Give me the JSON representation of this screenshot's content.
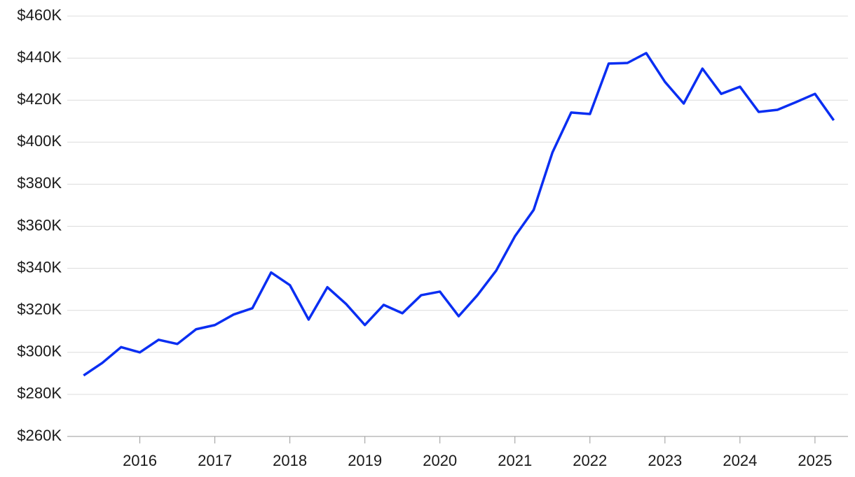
{
  "chart_data": {
    "type": "line",
    "x": [
      2015.25,
      2015.5,
      2015.75,
      2016,
      2016.25,
      2016.5,
      2016.75,
      2017,
      2017.25,
      2017.5,
      2017.75,
      2018,
      2018.25,
      2018.5,
      2018.75,
      2019,
      2019.25,
      2019.5,
      2019.75,
      2020,
      2020.25,
      2020.5,
      2020.75,
      2021,
      2021.25,
      2021.5,
      2021.75,
      2022,
      2022.25,
      2022.5,
      2022.75,
      2023,
      2023.25,
      2023.5,
      2023.75,
      2024,
      2024.25,
      2024.5,
      2024.75,
      2025,
      2025.25
    ],
    "series": [
      {
        "color": "#0a2ef2",
        "values": [
          289000,
          295000,
          302500,
          300000,
          306000,
          304000,
          311000,
          313000,
          318000,
          321000,
          338000,
          332000,
          315600,
          331000,
          323000,
          313000,
          322600,
          318600,
          327200,
          328900,
          317200,
          327200,
          338900,
          355200,
          367800,
          395100,
          414100,
          413400,
          437400,
          437700,
          442400,
          428700,
          418400,
          435000,
          423000,
          426400,
          414400,
          415400,
          419100,
          423000,
          410400
        ]
      }
    ],
    "xlim": [
      2015.07,
      2025.44
    ],
    "xticks": [
      2016,
      2017,
      2018,
      2019,
      2020,
      2021,
      2022,
      2023,
      2024,
      2025
    ],
    "ylim": [
      260000,
      460000
    ],
    "yticks": [
      {
        "value": 260000,
        "label": "$260K"
      },
      {
        "value": 280000,
        "label": "$280K"
      },
      {
        "value": 300000,
        "label": "$300K"
      },
      {
        "value": 320000,
        "label": "$320K"
      },
      {
        "value": 340000,
        "label": "$340K"
      },
      {
        "value": 360000,
        "label": "$360K"
      },
      {
        "value": 380000,
        "label": "$380K"
      },
      {
        "value": 400000,
        "label": "$400K"
      },
      {
        "value": 420000,
        "label": "$420K"
      },
      {
        "value": 440000,
        "label": "$440K"
      },
      {
        "value": 460000,
        "label": "$460K"
      }
    ],
    "grid": true
  }
}
